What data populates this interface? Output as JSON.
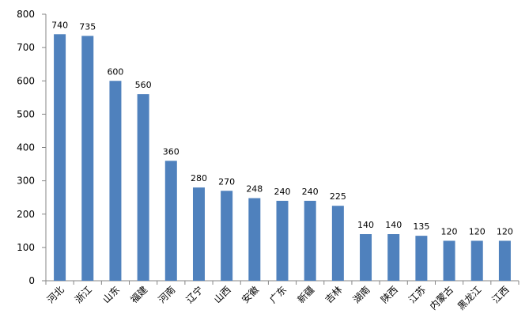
{
  "chart_data": {
    "type": "bar",
    "title": "",
    "xlabel": "",
    "ylabel": "",
    "ylim": [
      0,
      800
    ],
    "yticks": [
      0,
      100,
      200,
      300,
      400,
      500,
      600,
      700,
      800
    ],
    "grid": false,
    "legend": "none",
    "bar_color": "#4f81bd",
    "categories": [
      "河北",
      "浙江",
      "山东",
      "福建",
      "河南",
      "辽宁",
      "山西",
      "安徽",
      "广东",
      "新疆",
      "吉林",
      "湖南",
      "陕西",
      "江苏",
      "内蒙古",
      "黑龙江",
      "江西"
    ],
    "values": [
      740,
      735,
      600,
      560,
      360,
      280,
      270,
      248,
      240,
      240,
      225,
      140,
      140,
      135,
      120,
      120,
      120
    ]
  }
}
